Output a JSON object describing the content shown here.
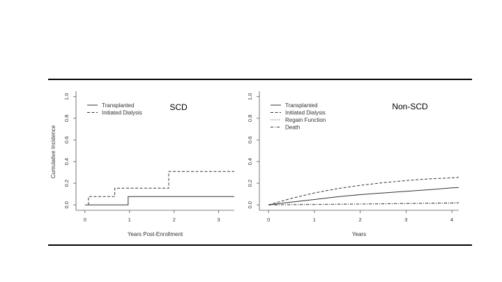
{
  "chart_data": [
    {
      "type": "line",
      "step": true,
      "title": "SCD",
      "xlabel": "Years Post-Enrollment",
      "ylabel": "Cumulative Incidence",
      "xlim": [
        -0.2,
        3.35
      ],
      "ylim": [
        -0.05,
        1.05
      ],
      "xticks": [
        "0",
        "1",
        "2",
        "3"
      ],
      "yticks": [
        "0.0",
        "0.2",
        "0.4",
        "0.6",
        "0.8",
        "1.0"
      ],
      "legend_position": "top-left",
      "series": [
        {
          "name": "Transplanted",
          "style": "solid",
          "x": [
            0.0,
            0.97,
            0.97,
            3.35
          ],
          "y": [
            0.0,
            0.0,
            0.077,
            0.077
          ]
        },
        {
          "name": "Initiated Dialysis",
          "style": "dashed",
          "x": [
            0.08,
            0.08,
            0.67,
            0.67,
            1.88,
            1.88,
            3.35
          ],
          "y": [
            0.0,
            0.077,
            0.077,
            0.154,
            0.154,
            0.308,
            0.308
          ]
        }
      ]
    },
    {
      "type": "line",
      "step": false,
      "title": "Non-SCD",
      "xlabel": "Years",
      "ylabel": "",
      "xlim": [
        -0.2,
        4.15
      ],
      "ylim": [
        -0.05,
        1.05
      ],
      "xticks": [
        "0",
        "1",
        "2",
        "3",
        "4"
      ],
      "yticks": [
        "0.0",
        "0.2",
        "0.4",
        "0.6",
        "0.8",
        "1.0"
      ],
      "legend_position": "top-left",
      "series": [
        {
          "name": "Transplanted",
          "style": "solid",
          "x": [
            0,
            0.5,
            1,
            1.5,
            2,
            2.5,
            3,
            3.5,
            4,
            4.15
          ],
          "y": [
            0,
            0.025,
            0.05,
            0.075,
            0.095,
            0.11,
            0.125,
            0.14,
            0.158,
            0.16
          ]
        },
        {
          "name": "Initiated Dialysis",
          "style": "dashed",
          "x": [
            0,
            0.5,
            1,
            1.5,
            2,
            2.5,
            3,
            3.5,
            4,
            4.15
          ],
          "y": [
            0,
            0.06,
            0.11,
            0.15,
            0.18,
            0.205,
            0.225,
            0.24,
            0.25,
            0.255
          ]
        },
        {
          "name": "Regain Function",
          "style": "dotted",
          "x": [
            0,
            1,
            2,
            3,
            4,
            4.15
          ],
          "y": [
            0,
            0.004,
            0.008,
            0.012,
            0.015,
            0.016
          ]
        },
        {
          "name": "Death",
          "style": "dashdot",
          "x": [
            0,
            1,
            2,
            3,
            4,
            4.15
          ],
          "y": [
            0,
            0.004,
            0.008,
            0.013,
            0.018,
            0.02
          ]
        }
      ]
    }
  ]
}
